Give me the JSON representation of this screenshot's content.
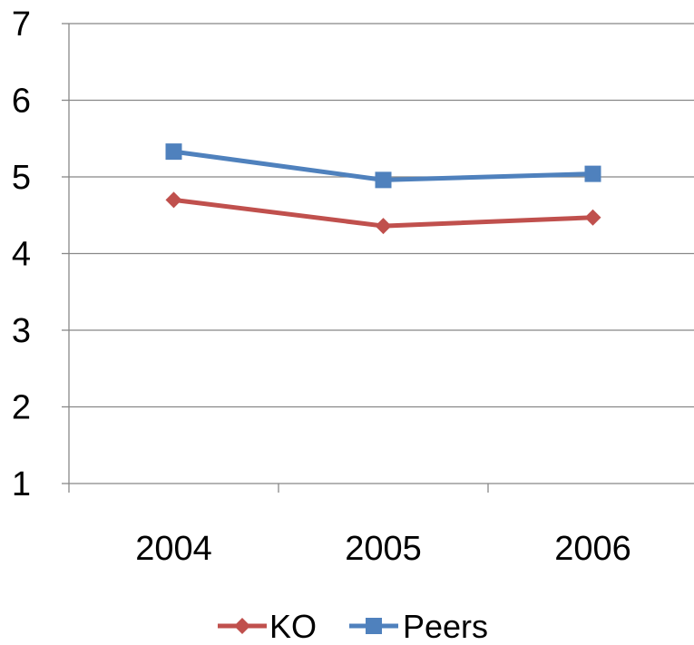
{
  "chart_data": {
    "type": "line",
    "title": "",
    "xlabel": "",
    "ylabel": "",
    "categories": [
      "2004",
      "2005",
      "2006"
    ],
    "ylim": [
      1,
      7
    ],
    "yticks": [
      1,
      2,
      3,
      4,
      5,
      6,
      7
    ],
    "grid": "horizontal",
    "legend": "bottom",
    "series": [
      {
        "name": "KO",
        "values": [
          4.7,
          4.36,
          4.47
        ],
        "color": "#c0504d",
        "marker": "diamond"
      },
      {
        "name": "Peers",
        "values": [
          5.33,
          4.96,
          5.04
        ],
        "color": "#4f81bd",
        "marker": "square"
      }
    ]
  }
}
